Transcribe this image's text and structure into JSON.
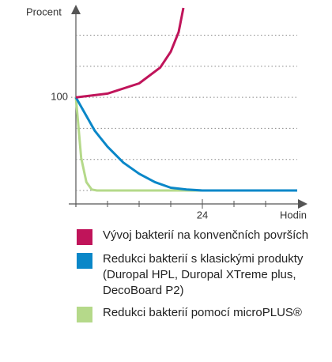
{
  "chart_data": {
    "type": "line",
    "y_label": "Procent",
    "x_label": "Hodin",
    "xlim": [
      -1.35,
      43.5
    ],
    "ylim": [
      -14.4,
      196
    ],
    "xticks": [
      24
    ],
    "xminor_ticks": [
      6,
      12,
      18,
      30,
      36
    ],
    "yticks": [
      100
    ],
    "ygrid": [
      0,
      33.3,
      66.7,
      133.3,
      166.7
    ],
    "series": [
      {
        "name": "Vývoj bakterií na konvenčních površích",
        "color": "#c0145a",
        "x": [
          0,
          6,
          12,
          16,
          18,
          19.5,
          20.4
        ],
        "values": [
          100,
          104,
          115,
          132,
          149,
          170,
          196
        ]
      },
      {
        "name": "Redukci bakterií s klasickými produkty (Duropal HPL, Duropal XTreme plus, DecoBoard P2)",
        "color": "#0a87c8",
        "x": [
          0,
          3.6,
          6,
          9,
          12,
          15,
          18,
          21,
          24,
          42
        ],
        "values": [
          100,
          64,
          47,
          30,
          18,
          9,
          3,
          1,
          0,
          0
        ]
      },
      {
        "name": "Redukci bakterií pomocí microPLUS®",
        "color": "#b5d98a",
        "x": [
          0,
          1,
          2,
          3,
          4,
          24
        ],
        "values": [
          100,
          35,
          9,
          1,
          0,
          0
        ]
      }
    ]
  }
}
